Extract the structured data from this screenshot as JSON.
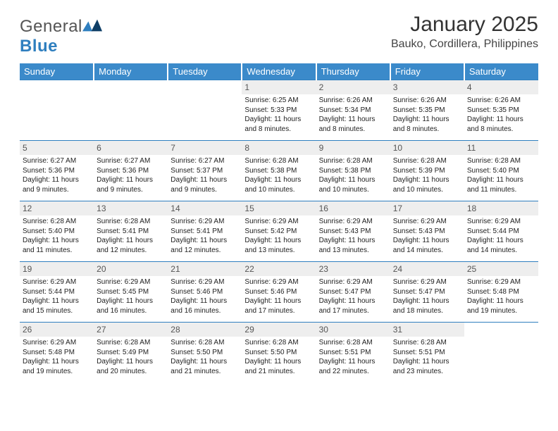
{
  "brand": {
    "part1": "General",
    "part2": "Blue"
  },
  "title": "January 2025",
  "location": "Bauko, Cordillera, Philippines",
  "colors": {
    "header_bg": "#3b8aca",
    "header_text": "#ffffff",
    "daynum_bg": "#eeeeee",
    "rule": "#2f7fbf",
    "text": "#333333",
    "logo_blue": "#2f7fbf",
    "page_bg": "#ffffff"
  },
  "day_headers": [
    "Sunday",
    "Monday",
    "Tuesday",
    "Wednesday",
    "Thursday",
    "Friday",
    "Saturday"
  ],
  "weeks": [
    [
      null,
      null,
      null,
      {
        "n": "1",
        "sr": "6:25 AM",
        "ss": "5:33 PM",
        "dl": "11 hours and 8 minutes."
      },
      {
        "n": "2",
        "sr": "6:26 AM",
        "ss": "5:34 PM",
        "dl": "11 hours and 8 minutes."
      },
      {
        "n": "3",
        "sr": "6:26 AM",
        "ss": "5:35 PM",
        "dl": "11 hours and 8 minutes."
      },
      {
        "n": "4",
        "sr": "6:26 AM",
        "ss": "5:35 PM",
        "dl": "11 hours and 8 minutes."
      }
    ],
    [
      {
        "n": "5",
        "sr": "6:27 AM",
        "ss": "5:36 PM",
        "dl": "11 hours and 9 minutes."
      },
      {
        "n": "6",
        "sr": "6:27 AM",
        "ss": "5:36 PM",
        "dl": "11 hours and 9 minutes."
      },
      {
        "n": "7",
        "sr": "6:27 AM",
        "ss": "5:37 PM",
        "dl": "11 hours and 9 minutes."
      },
      {
        "n": "8",
        "sr": "6:28 AM",
        "ss": "5:38 PM",
        "dl": "11 hours and 10 minutes."
      },
      {
        "n": "9",
        "sr": "6:28 AM",
        "ss": "5:38 PM",
        "dl": "11 hours and 10 minutes."
      },
      {
        "n": "10",
        "sr": "6:28 AM",
        "ss": "5:39 PM",
        "dl": "11 hours and 10 minutes."
      },
      {
        "n": "11",
        "sr": "6:28 AM",
        "ss": "5:40 PM",
        "dl": "11 hours and 11 minutes."
      }
    ],
    [
      {
        "n": "12",
        "sr": "6:28 AM",
        "ss": "5:40 PM",
        "dl": "11 hours and 11 minutes."
      },
      {
        "n": "13",
        "sr": "6:28 AM",
        "ss": "5:41 PM",
        "dl": "11 hours and 12 minutes."
      },
      {
        "n": "14",
        "sr": "6:29 AM",
        "ss": "5:41 PM",
        "dl": "11 hours and 12 minutes."
      },
      {
        "n": "15",
        "sr": "6:29 AM",
        "ss": "5:42 PM",
        "dl": "11 hours and 13 minutes."
      },
      {
        "n": "16",
        "sr": "6:29 AM",
        "ss": "5:43 PM",
        "dl": "11 hours and 13 minutes."
      },
      {
        "n": "17",
        "sr": "6:29 AM",
        "ss": "5:43 PM",
        "dl": "11 hours and 14 minutes."
      },
      {
        "n": "18",
        "sr": "6:29 AM",
        "ss": "5:44 PM",
        "dl": "11 hours and 14 minutes."
      }
    ],
    [
      {
        "n": "19",
        "sr": "6:29 AM",
        "ss": "5:44 PM",
        "dl": "11 hours and 15 minutes."
      },
      {
        "n": "20",
        "sr": "6:29 AM",
        "ss": "5:45 PM",
        "dl": "11 hours and 16 minutes."
      },
      {
        "n": "21",
        "sr": "6:29 AM",
        "ss": "5:46 PM",
        "dl": "11 hours and 16 minutes."
      },
      {
        "n": "22",
        "sr": "6:29 AM",
        "ss": "5:46 PM",
        "dl": "11 hours and 17 minutes."
      },
      {
        "n": "23",
        "sr": "6:29 AM",
        "ss": "5:47 PM",
        "dl": "11 hours and 17 minutes."
      },
      {
        "n": "24",
        "sr": "6:29 AM",
        "ss": "5:47 PM",
        "dl": "11 hours and 18 minutes."
      },
      {
        "n": "25",
        "sr": "6:29 AM",
        "ss": "5:48 PM",
        "dl": "11 hours and 19 minutes."
      }
    ],
    [
      {
        "n": "26",
        "sr": "6:29 AM",
        "ss": "5:48 PM",
        "dl": "11 hours and 19 minutes."
      },
      {
        "n": "27",
        "sr": "6:28 AM",
        "ss": "5:49 PM",
        "dl": "11 hours and 20 minutes."
      },
      {
        "n": "28",
        "sr": "6:28 AM",
        "ss": "5:50 PM",
        "dl": "11 hours and 21 minutes."
      },
      {
        "n": "29",
        "sr": "6:28 AM",
        "ss": "5:50 PM",
        "dl": "11 hours and 21 minutes."
      },
      {
        "n": "30",
        "sr": "6:28 AM",
        "ss": "5:51 PM",
        "dl": "11 hours and 22 minutes."
      },
      {
        "n": "31",
        "sr": "6:28 AM",
        "ss": "5:51 PM",
        "dl": "11 hours and 23 minutes."
      },
      null
    ]
  ],
  "labels": {
    "sunrise": "Sunrise:",
    "sunset": "Sunset:",
    "daylight": "Daylight:"
  }
}
